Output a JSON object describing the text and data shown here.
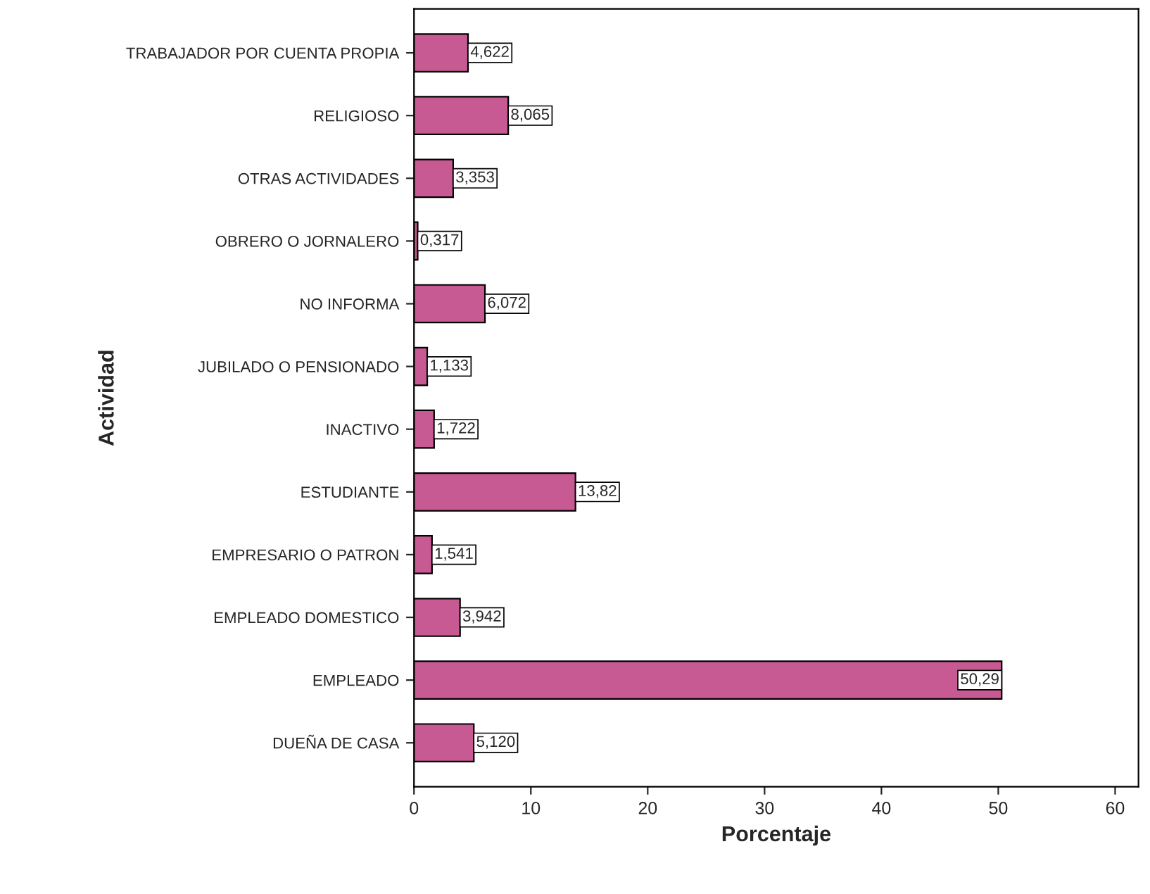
{
  "chart_data": {
    "type": "bar",
    "orientation": "horizontal",
    "xlabel": "Porcentaje",
    "ylabel": "Actividad",
    "categories": [
      "TRABAJADOR POR CUENTA PROPIA",
      "RELIGIOSO",
      "OTRAS ACTIVIDADES",
      "OBRERO O JORNALERO",
      "NO INFORMA",
      "JUBILADO O PENSIONADO",
      "INACTIVO",
      "ESTUDIANTE",
      "EMPRESARIO O PATRON",
      "EMPLEADO DOMESTICO",
      "EMPLEADO",
      "DUEÑA DE CASA"
    ],
    "values": [
      4.622,
      8.065,
      3.353,
      0.317,
      6.072,
      1.133,
      1.722,
      13.82,
      1.541,
      3.942,
      50.29,
      5.12
    ],
    "value_labels": [
      "4,622",
      "8,065",
      "3,353",
      "0,317",
      "6,072",
      "1,133",
      "1,722",
      "13,82",
      "1,541",
      "3,942",
      "50,29",
      "5,120"
    ],
    "color": "#c85a93",
    "xlim": [
      0,
      62
    ],
    "xticks": [
      0,
      10,
      20,
      30,
      40,
      50,
      60
    ],
    "grid": false
  }
}
